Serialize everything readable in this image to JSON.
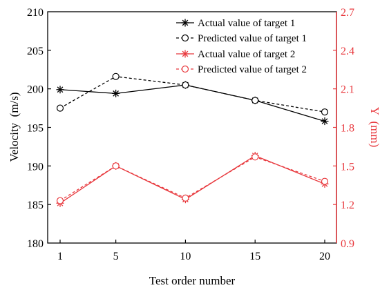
{
  "chart_data": {
    "type": "line",
    "x": [
      1,
      5,
      10,
      15,
      20
    ],
    "xlabel": "Test order number",
    "ylabel": "Velocity  (m/s)",
    "y2label": "Y  (mm)",
    "xticks": [
      "1",
      "5",
      "10",
      "15",
      "20"
    ],
    "yticks": [
      "180",
      "185",
      "190",
      "195",
      "200",
      "205",
      "210"
    ],
    "y2ticks": [
      "0.9",
      "1.2",
      "1.5",
      "1.8",
      "2.1",
      "2.4",
      "2.7"
    ],
    "ylim": [
      180,
      210
    ],
    "y2lim": [
      0.9,
      2.7
    ],
    "legend_position": "top-right",
    "grid": false,
    "colors": {
      "target1": "#000000",
      "target2": "#e8383d"
    },
    "series": [
      {
        "name": "Actual value of target 1",
        "axis": "left",
        "marker": "asterisk",
        "line": "solid",
        "color": "#000000",
        "values": [
          199.9,
          199.4,
          200.5,
          198.5,
          195.8
        ]
      },
      {
        "name": "Predicted value of target 1",
        "axis": "left",
        "marker": "circle",
        "line": "dashed",
        "color": "#000000",
        "values": [
          197.5,
          201.6,
          200.5,
          198.5,
          197.0
        ]
      },
      {
        "name": "Actual value of target 2",
        "axis": "right",
        "marker": "asterisk",
        "line": "solid",
        "color": "#e8383d",
        "values": [
          1.21,
          1.5,
          1.24,
          1.58,
          1.36
        ]
      },
      {
        "name": "Predicted value of target 2",
        "axis": "right",
        "marker": "circle",
        "line": "dashed",
        "color": "#e8383d",
        "values": [
          1.23,
          1.5,
          1.25,
          1.57,
          1.38
        ]
      }
    ]
  }
}
